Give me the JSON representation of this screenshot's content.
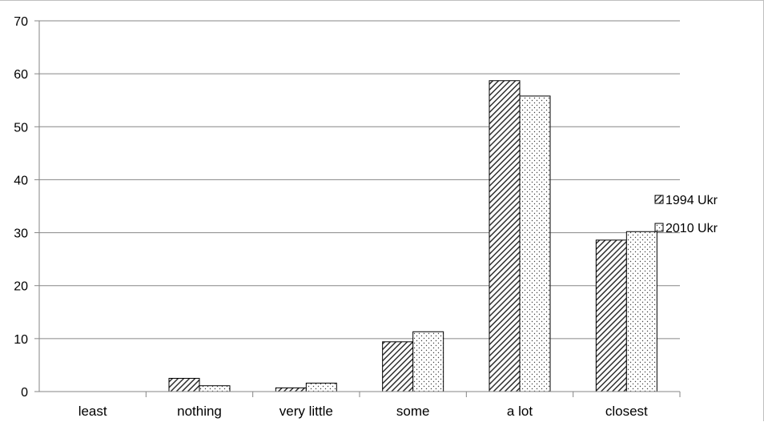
{
  "chart_data": {
    "type": "bar",
    "categories": [
      "least",
      "nothing",
      "very little",
      "some",
      "a lot",
      "closest"
    ],
    "series": [
      {
        "name": "1994 Ukr",
        "values": [
          0,
          2.5,
          0.7,
          9.4,
          58.7,
          28.6
        ],
        "pattern": "diagonal-hatch"
      },
      {
        "name": "2010 Ukr",
        "values": [
          0,
          1.1,
          1.6,
          11.3,
          55.8,
          30.2
        ],
        "pattern": "dots"
      }
    ],
    "ylim": [
      0,
      70
    ],
    "yticks": [
      0,
      10,
      20,
      30,
      40,
      50,
      60,
      70
    ],
    "grid": true,
    "legend": "right",
    "title": "",
    "xlabel": "",
    "ylabel": ""
  }
}
